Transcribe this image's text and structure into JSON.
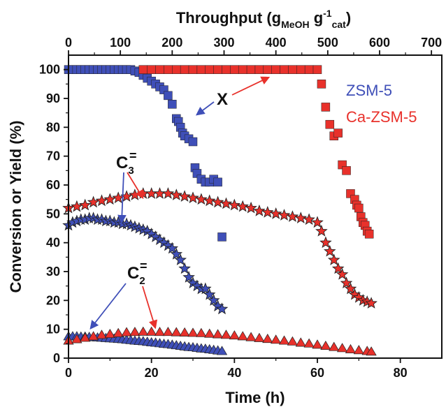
{
  "colors": {
    "zsm5": "#3f4fb8",
    "ca_zsm5": "#e8312b",
    "axis": "#111111",
    "blue_arrow": "#3f4fb8",
    "red_arrow": "#e8312b"
  },
  "chart_data": {
    "type": "scatter",
    "xlabel": "Time (h)",
    "ylabel": "Conversion or Yield (%)",
    "top_xlabel": {
      "main": "Throughput (g",
      "sub1": "MeOH",
      "mid": " g",
      "sup": "-1",
      "sub2": "cat",
      "end": ")"
    },
    "xlim": [
      0,
      90
    ],
    "ylim": [
      0,
      105
    ],
    "top_xlim": [
      0,
      720
    ],
    "xticks": [
      "0",
      "20",
      "40",
      "60",
      "80"
    ],
    "xtick_values": [
      0,
      20,
      40,
      60,
      80
    ],
    "yticks": [
      "0",
      "10",
      "20",
      "30",
      "40",
      "50",
      "60",
      "70",
      "80",
      "90",
      "100"
    ],
    "ytick_values": [
      0,
      10,
      20,
      30,
      40,
      50,
      60,
      70,
      80,
      90,
      100
    ],
    "top_xticks": [
      "0",
      "100",
      "200",
      "300",
      "400",
      "500",
      "600",
      "700"
    ],
    "top_xtick_values": [
      0,
      100,
      200,
      300,
      400,
      500,
      600,
      700
    ],
    "legend": [
      "ZSM-5",
      "Ca-ZSM-5"
    ],
    "annotations": {
      "x_label": "X",
      "c3_label": "C",
      "c3_sub": "3",
      "c2_label": "C",
      "c2_sub": "2",
      "eq": "="
    },
    "series": [
      {
        "name": "ZSM-5",
        "metric": "X",
        "marker": "square",
        "color": "#3f4fb8",
        "x": [
          0,
          1,
          2,
          3,
          4,
          5,
          6,
          7,
          8,
          9,
          10,
          11,
          12,
          13,
          14,
          15,
          16,
          17,
          18,
          19,
          20,
          21,
          22,
          23,
          24,
          25,
          26,
          26.5,
          27,
          27.5,
          28,
          29,
          30,
          30.5,
          31,
          32,
          33,
          34,
          35,
          36,
          37
        ],
        "y": [
          100,
          100,
          100,
          100,
          100,
          100,
          100,
          100,
          100,
          100,
          100,
          100,
          100,
          100,
          100,
          100,
          99.5,
          99,
          98,
          97,
          96,
          95,
          94,
          93,
          91,
          88,
          83,
          82,
          80,
          78,
          77,
          76,
          75,
          66,
          64,
          62,
          61,
          61,
          62,
          61,
          42
        ]
      },
      {
        "name": "Ca-ZSM-5",
        "metric": "X",
        "marker": "square",
        "color": "#e8312b",
        "x": [
          18,
          20,
          22,
          24,
          26,
          28,
          30,
          32,
          34,
          36,
          38,
          40,
          42,
          44,
          46,
          48,
          50,
          52,
          54,
          56,
          58,
          60,
          61,
          62,
          63,
          64,
          65,
          66,
          67,
          68,
          69,
          69.5,
          70,
          70.5,
          71,
          71.5,
          72,
          72.5
        ],
        "y": [
          100,
          100,
          100,
          100,
          100,
          100,
          100,
          100,
          100,
          100,
          100,
          100,
          100,
          100,
          100,
          100,
          100,
          100,
          100,
          100,
          100,
          100,
          95,
          87,
          81,
          77,
          78,
          67,
          65,
          57,
          55,
          53,
          52,
          49,
          47,
          46,
          44,
          43
        ]
      },
      {
        "name": "ZSM-5",
        "metric": "C3=",
        "marker": "star",
        "color": "#3f4fb8",
        "x": [
          0,
          1,
          2,
          3,
          4,
          5,
          6,
          7,
          8,
          9,
          10,
          11,
          12,
          13,
          14,
          15,
          16,
          17,
          18,
          19,
          20,
          21,
          22,
          23,
          24,
          25,
          26,
          27,
          28,
          29,
          30,
          31,
          32,
          33,
          34,
          35,
          36,
          37
        ],
        "y": [
          46,
          47,
          47.5,
          48,
          48,
          48.5,
          48.5,
          48,
          48,
          47.5,
          47.5,
          47,
          47,
          46.5,
          46.5,
          46,
          45.5,
          45,
          44.5,
          44,
          43,
          42,
          41,
          40,
          39,
          38,
          36,
          34,
          31,
          28,
          26,
          25,
          24,
          24,
          22,
          20,
          18,
          17
        ]
      },
      {
        "name": "Ca-ZSM-5",
        "metric": "C3=",
        "marker": "star",
        "color": "#e8312b",
        "x": [
          0,
          2,
          4,
          6,
          8,
          10,
          12,
          14,
          16,
          18,
          20,
          22,
          24,
          26,
          28,
          30,
          32,
          34,
          36,
          38,
          40,
          42,
          44,
          46,
          48,
          50,
          52,
          54,
          56,
          58,
          60,
          61,
          62,
          63,
          64,
          65,
          66,
          67,
          68,
          69,
          70,
          71,
          72,
          73
        ],
        "y": [
          52,
          52.5,
          53,
          54,
          54.5,
          55,
          55.5,
          56,
          56.5,
          57,
          57,
          57,
          57,
          56.5,
          56,
          55.5,
          55,
          54.5,
          54,
          53.5,
          53,
          52.5,
          52,
          51,
          50.5,
          50,
          49.5,
          49,
          48.5,
          48,
          47,
          44,
          40,
          37,
          34,
          31,
          29,
          26,
          24,
          22,
          21,
          20,
          19.5,
          19
        ]
      },
      {
        "name": "ZSM-5",
        "metric": "C2=",
        "marker": "triangle",
        "color": "#3f4fb8",
        "x": [
          0,
          1,
          2,
          3,
          4,
          5,
          6,
          7,
          8,
          9,
          10,
          11,
          12,
          13,
          14,
          15,
          16,
          17,
          18,
          19,
          20,
          21,
          22,
          23,
          24,
          25,
          26,
          27,
          28,
          29,
          30,
          31,
          32,
          33,
          34,
          35,
          36,
          37
        ],
        "y": [
          7.5,
          7.5,
          7.5,
          7.4,
          7.4,
          7.3,
          7.2,
          7.1,
          7,
          6.9,
          6.8,
          6.7,
          6.6,
          6.5,
          6.3,
          6.2,
          6,
          5.9,
          5.8,
          5.6,
          5.4,
          5.3,
          5.1,
          4.9,
          4.8,
          4.6,
          4.4,
          4.2,
          4,
          3.8,
          3.7,
          3.5,
          3.3,
          3.2,
          3,
          2.8,
          2.6,
          2.4
        ]
      },
      {
        "name": "Ca-ZSM-5",
        "metric": "C2=",
        "marker": "triangle",
        "color": "#e8312b",
        "x": [
          0,
          2,
          4,
          6,
          8,
          10,
          12,
          14,
          16,
          18,
          20,
          22,
          24,
          26,
          28,
          30,
          32,
          34,
          36,
          38,
          40,
          42,
          44,
          46,
          48,
          50,
          52,
          54,
          56,
          58,
          60,
          62,
          64,
          66,
          68,
          70,
          72,
          73
        ],
        "y": [
          6,
          6.5,
          7,
          7.5,
          8,
          8.3,
          8.6,
          8.9,
          9,
          9.1,
          9.1,
          9,
          9,
          8.9,
          8.8,
          8.7,
          8.6,
          8.4,
          8.2,
          8,
          7.8,
          7.5,
          7.2,
          6.9,
          6.6,
          6.3,
          6,
          5.7,
          5.3,
          5,
          4.6,
          4.2,
          3.8,
          3.4,
          3,
          2.7,
          2.4,
          2.2
        ]
      }
    ]
  }
}
